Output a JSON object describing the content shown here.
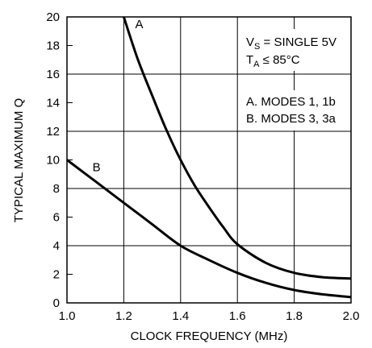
{
  "chart_data": {
    "type": "line",
    "xlabel": "CLOCK FREQUENCY (MHz)",
    "ylabel": "TYPICAL MAXIMUM Q",
    "xlim": [
      1.0,
      2.0
    ],
    "ylim": [
      0,
      20
    ],
    "x_ticks": [
      "1.0",
      "1.2",
      "1.4",
      "1.6",
      "1.8",
      "2.0"
    ],
    "y_ticks": [
      "0",
      "2",
      "4",
      "6",
      "8",
      "10",
      "12",
      "14",
      "16",
      "18",
      "20"
    ],
    "grid": true,
    "annotations": {
      "conditions_line1_main": "V",
      "conditions_line1_sub": "S",
      "conditions_line1_rest": " = SINGLE 5V",
      "conditions_line2_main": "T",
      "conditions_line2_sub": "A",
      "conditions_line2_rest": " ≤ 85°C",
      "legend_a": "A. MODES 1, 1b",
      "legend_b": "B. MODES 3, 3a"
    },
    "series": [
      {
        "name": "A",
        "x": [
          1.2,
          1.25,
          1.3,
          1.35,
          1.4,
          1.45,
          1.5,
          1.55,
          1.6,
          1.7,
          1.8,
          1.9,
          2.0
        ],
        "y": [
          20,
          17,
          14.5,
          12.1,
          10,
          8.2,
          6.7,
          5.3,
          4.1,
          2.8,
          2.1,
          1.8,
          1.7
        ]
      },
      {
        "name": "B",
        "x": [
          1.0,
          1.1,
          1.2,
          1.3,
          1.4,
          1.5,
          1.6,
          1.7,
          1.8,
          1.9,
          2.0
        ],
        "y": [
          10,
          8.5,
          7,
          5.5,
          4,
          3,
          2.1,
          1.4,
          0.9,
          0.6,
          0.4
        ]
      }
    ]
  }
}
